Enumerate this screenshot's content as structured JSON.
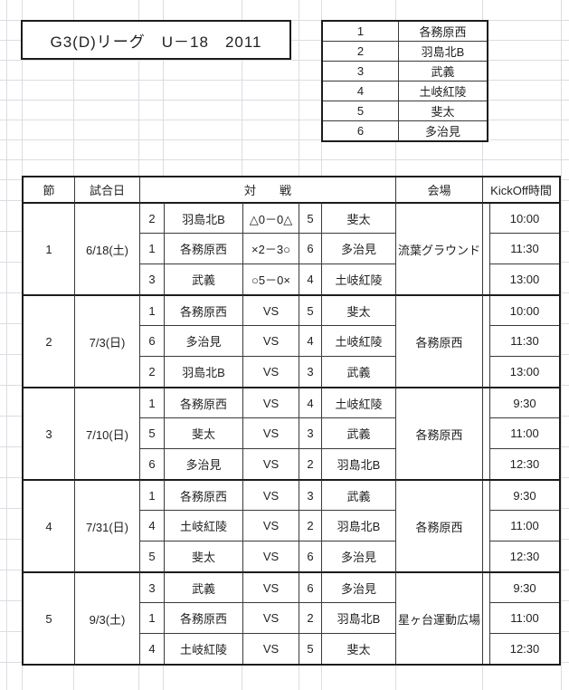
{
  "title": "G3(D)リーグ　U－18　2011",
  "teams": [
    {
      "no": "1",
      "name": "各務原西"
    },
    {
      "no": "2",
      "name": "羽島北B"
    },
    {
      "no": "3",
      "name": "武義"
    },
    {
      "no": "4",
      "name": "土岐紅陵"
    },
    {
      "no": "5",
      "name": "斐太"
    },
    {
      "no": "6",
      "name": "多治見"
    }
  ],
  "schedule": {
    "headers": {
      "round": "節",
      "date": "試合日",
      "match": "対　　戦",
      "venue": "会場",
      "kickoff": "KickOff時間"
    },
    "rounds": [
      {
        "round": "1",
        "date": "6/18(土)",
        "venue": "流葉グラウンド",
        "matches": [
          {
            "home_no": "2",
            "home": "羽島北B",
            "result": "△0－0△",
            "away_no": "5",
            "away": "斐太",
            "time": "10:00"
          },
          {
            "home_no": "1",
            "home": "各務原西",
            "result": "×2－3○",
            "away_no": "6",
            "away": "多治見",
            "time": "11:30"
          },
          {
            "home_no": "3",
            "home": "武義",
            "result": "○5－0×",
            "away_no": "4",
            "away": "土岐紅陵",
            "time": "13:00"
          }
        ]
      },
      {
        "round": "2",
        "date": "7/3(日)",
        "venue": "各務原西",
        "matches": [
          {
            "home_no": "1",
            "home": "各務原西",
            "result": "VS",
            "away_no": "5",
            "away": "斐太",
            "time": "10:00"
          },
          {
            "home_no": "6",
            "home": "多治見",
            "result": "VS",
            "away_no": "4",
            "away": "土岐紅陵",
            "time": "11:30"
          },
          {
            "home_no": "2",
            "home": "羽島北B",
            "result": "VS",
            "away_no": "3",
            "away": "武義",
            "time": "13:00"
          }
        ]
      },
      {
        "round": "3",
        "date": "7/10(日)",
        "venue": "各務原西",
        "matches": [
          {
            "home_no": "1",
            "home": "各務原西",
            "result": "VS",
            "away_no": "4",
            "away": "土岐紅陵",
            "time": "9:30"
          },
          {
            "home_no": "5",
            "home": "斐太",
            "result": "VS",
            "away_no": "3",
            "away": "武義",
            "time": "11:00"
          },
          {
            "home_no": "6",
            "home": "多治見",
            "result": "VS",
            "away_no": "2",
            "away": "羽島北B",
            "time": "12:30"
          }
        ]
      },
      {
        "round": "4",
        "date": "7/31(日)",
        "venue": "各務原西",
        "matches": [
          {
            "home_no": "1",
            "home": "各務原西",
            "result": "VS",
            "away_no": "3",
            "away": "武義",
            "time": "9:30"
          },
          {
            "home_no": "4",
            "home": "土岐紅陵",
            "result": "VS",
            "away_no": "2",
            "away": "羽島北B",
            "time": "11:00"
          },
          {
            "home_no": "5",
            "home": "斐太",
            "result": "VS",
            "away_no": "6",
            "away": "多治見",
            "time": "12:30"
          }
        ]
      },
      {
        "round": "5",
        "date": "9/3(土)",
        "venue": "星ヶ台運動広場",
        "matches": [
          {
            "home_no": "3",
            "home": "武義",
            "result": "VS",
            "away_no": "6",
            "away": "多治見",
            "time": "9:30"
          },
          {
            "home_no": "1",
            "home": "各務原西",
            "result": "VS",
            "away_no": "2",
            "away": "羽島北B",
            "time": "11:00"
          },
          {
            "home_no": "4",
            "home": "土岐紅陵",
            "result": "VS",
            "away_no": "5",
            "away": "斐太",
            "time": "12:30"
          }
        ]
      }
    ]
  }
}
